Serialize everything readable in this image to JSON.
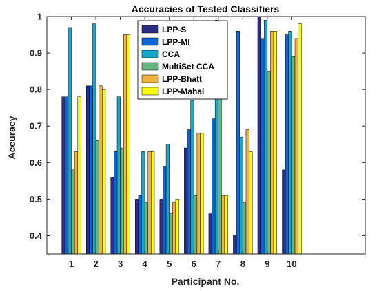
{
  "chart_data": {
    "type": "bar",
    "title": "Accuracies of Tested Classifiers",
    "xlabel": "Participant No.",
    "ylabel": "Accuracy",
    "ylim": [
      0.35,
      1.0
    ],
    "xlim": [
      0,
      13
    ],
    "yticks": [
      0.4,
      0.5,
      0.6,
      0.7,
      0.8,
      0.9,
      1
    ],
    "ytick_labels": [
      "0.4",
      "0.5",
      "0.6",
      "0.7",
      "0.8",
      "0.9",
      "1"
    ],
    "categories": [
      "1",
      "2",
      "3",
      "4",
      "5",
      "6",
      "7",
      "8",
      "9",
      "10"
    ],
    "grid": false,
    "legend_position": "top-center",
    "series": [
      {
        "name": "LPP-S",
        "color": "#2e2d86",
        "values": [
          0.78,
          0.81,
          0.56,
          0.5,
          0.5,
          0.64,
          0.46,
          0.4,
          1.0,
          0.58
        ]
      },
      {
        "name": "LPP-MI",
        "color": "#0b66d7",
        "values": [
          0.78,
          0.81,
          0.63,
          0.51,
          0.59,
          0.69,
          0.72,
          0.96,
          0.94,
          0.95
        ]
      },
      {
        "name": "CCA",
        "color": "#1aa5cc",
        "values": [
          0.97,
          0.98,
          0.78,
          0.63,
          0.65,
          0.77,
          0.99,
          0.67,
          0.99,
          0.96
        ]
      },
      {
        "name": "MultiSet CCA",
        "color": "#65b77f",
        "values": [
          0.58,
          0.66,
          0.64,
          0.49,
          0.46,
          0.51,
          0.82,
          0.49,
          0.85,
          0.89
        ]
      },
      {
        "name": "LPP-Bhatt",
        "color": "#f2b23f",
        "values": [
          0.63,
          0.81,
          0.95,
          0.63,
          0.49,
          0.68,
          0.51,
          0.69,
          0.96,
          0.94
        ]
      },
      {
        "name": "LPP-Mahal",
        "color": "#f8f815",
        "values": [
          0.78,
          0.8,
          0.95,
          0.63,
          0.5,
          0.68,
          0.51,
          0.63,
          0.96,
          0.98
        ]
      }
    ]
  }
}
